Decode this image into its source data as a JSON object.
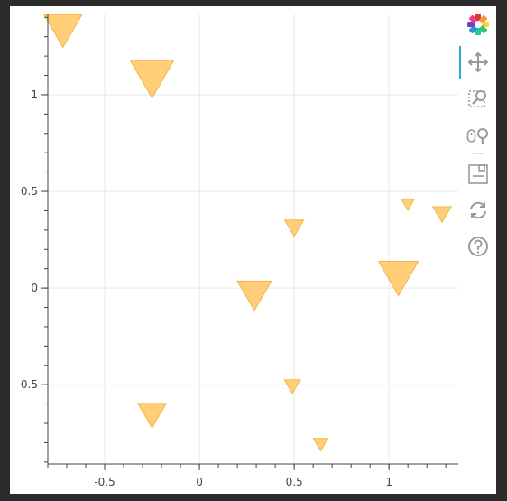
{
  "chart_data": {
    "type": "scatter",
    "marker": "inverted_triangle",
    "x": [
      -0.72,
      -0.25,
      0.29,
      0.5,
      0.49,
      0.64,
      1.05,
      1.1,
      1.28,
      -0.25
    ],
    "y": [
      1.33,
      1.08,
      -0.04,
      0.31,
      -0.51,
      -0.81,
      0.05,
      0.43,
      0.38,
      -0.66
    ],
    "size_rel": [
      1.0,
      1.15,
      0.9,
      0.5,
      0.42,
      0.38,
      1.05,
      0.33,
      0.48,
      0.75
    ],
    "xlim": [
      -0.8,
      1.38
    ],
    "ylim": [
      -0.91,
      1.42
    ],
    "x_ticks": [
      -0.5,
      0,
      0.5,
      1
    ],
    "x_tick_labels": [
      "-0.5",
      "0",
      "0.5",
      "1"
    ],
    "y_ticks": [
      -0.5,
      0,
      0.5,
      1
    ],
    "y_tick_labels": [
      "-0.5",
      "0",
      "0.5",
      "1"
    ],
    "grid": true,
    "title": "",
    "xlabel": "",
    "ylabel": ""
  },
  "colors": {
    "marker_fill": "#ffc65e",
    "marker_stroke": "#f5b44a",
    "grid": "#e8e8e8",
    "axis": "#444444",
    "active_tool": "#26aae1"
  },
  "toolbar": {
    "tools": [
      "bokeh-logo-icon",
      "pan-icon",
      "box-zoom-icon",
      "wheel-zoom-icon",
      "save-icon",
      "reset-icon",
      "help-icon"
    ]
  }
}
